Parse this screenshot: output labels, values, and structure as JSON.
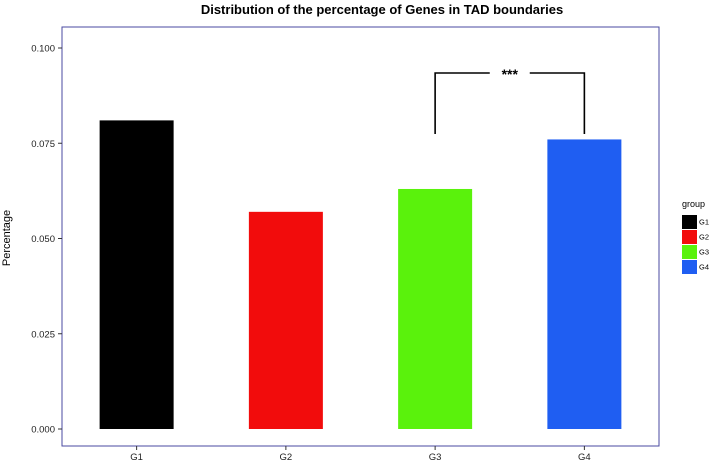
{
  "chart_data": {
    "type": "bar",
    "title": "Distribution of the percentage of Genes in TAD boundaries",
    "xlabel": "",
    "ylabel": "Percentage",
    "categories": [
      "G1",
      "G2",
      "G3",
      "G4"
    ],
    "values": [
      0.081,
      0.057,
      0.063,
      0.076
    ],
    "colors": [
      "#000000",
      "#f20c0c",
      "#5af20c",
      "#1f5ef2"
    ],
    "ylim": [
      0,
      0.1
    ],
    "yticks": [
      0.0,
      0.025,
      0.05,
      0.075,
      0.1
    ],
    "ytick_labels": [
      "0.000",
      "0.025",
      "0.050",
      "0.075",
      "0.100"
    ],
    "grid": false,
    "legend": {
      "title": "group",
      "position": "right",
      "entries": [
        "G1",
        "G2",
        "G3",
        "G4"
      ]
    },
    "annotations": [
      {
        "type": "significance-bracket",
        "from": "G3",
        "to": "G4",
        "label": "***"
      }
    ]
  }
}
